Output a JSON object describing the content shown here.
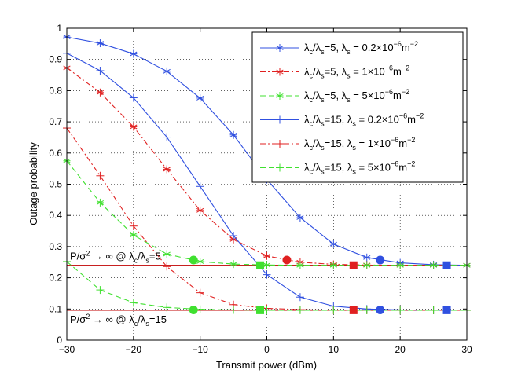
{
  "chart_data": {
    "type": "line",
    "xlabel": "Transmit power (dBm)",
    "ylabel": "Outage probability",
    "xlim": [
      -30,
      30
    ],
    "ylim": [
      0,
      1
    ],
    "xticks": [
      -30,
      -20,
      -10,
      0,
      10,
      20,
      30
    ],
    "xtick_labels": [
      "−30",
      "−20",
      "−10",
      "0",
      "10",
      "20",
      "30"
    ],
    "yticks": [
      0,
      0.1,
      0.2,
      0.3,
      0.4,
      0.5,
      0.6,
      0.7,
      0.8,
      0.9,
      1
    ],
    "ytick_labels": [
      "0",
      "0.1",
      "0.2",
      "0.3",
      "0.4",
      "0.5",
      "0.6",
      "0.7",
      "0.8",
      "0.9",
      "1"
    ],
    "grid": true,
    "legend_position": "top-right",
    "series": [
      {
        "name": "λc/λs=5, λs = 0.2×10⁻⁶m⁻²",
        "legend": {
          "a": "c",
          "b": "s",
          "r": "5",
          "val": "0.2×10",
          "exp1": "−6",
          "unit": "m",
          "exp2": "−2"
        },
        "color": "#3050e0",
        "dash": "solid",
        "marker": "asterisk",
        "x": [
          -30,
          -25,
          -20,
          -15,
          -10,
          -5,
          0,
          5,
          10,
          15,
          20,
          25,
          30
        ],
        "y": [
          0.972,
          0.952,
          0.918,
          0.862,
          0.776,
          0.658,
          0.515,
          0.393,
          0.308,
          0.265,
          0.248,
          0.242,
          0.24
        ]
      },
      {
        "name": "λc/λs=5, λs = 1×10⁻⁶m⁻²",
        "legend": {
          "a": "c",
          "b": "s",
          "r": "5",
          "val": "1×10",
          "exp1": "−6",
          "unit": "m",
          "exp2": "−2"
        },
        "color": "#e02020",
        "dash": "dashdot",
        "marker": "asterisk",
        "x": [
          -30,
          -25,
          -20,
          -15,
          -10,
          -5,
          0,
          5,
          10,
          15,
          20,
          25,
          30
        ],
        "y": [
          0.873,
          0.794,
          0.684,
          0.548,
          0.416,
          0.323,
          0.27,
          0.25,
          0.243,
          0.241,
          0.24,
          0.24,
          0.24
        ]
      },
      {
        "name": "λc/λs=5, λs = 5×10⁻⁶m⁻²",
        "legend": {
          "a": "c",
          "b": "s",
          "r": "5",
          "val": "5×10",
          "exp1": "−6",
          "unit": "m",
          "exp2": "−2"
        },
        "color": "#40e030",
        "dash": "dashed",
        "marker": "asterisk",
        "x": [
          -30,
          -25,
          -20,
          -15,
          -10,
          -5,
          0,
          5,
          10,
          15,
          20,
          25,
          30
        ],
        "y": [
          0.575,
          0.441,
          0.337,
          0.276,
          0.252,
          0.244,
          0.241,
          0.24,
          0.24,
          0.24,
          0.24,
          0.24,
          0.24
        ]
      },
      {
        "name": "λc/λs=15, λs = 0.2×10⁻⁶m⁻²",
        "legend": {
          "a": "c",
          "b": "s",
          "r": "15",
          "val": "0.2×10",
          "exp1": "−6",
          "unit": "m",
          "exp2": "−2"
        },
        "color": "#3050e0",
        "dash": "solid",
        "marker": "plus",
        "x": [
          -30,
          -25,
          -20,
          -15,
          -10,
          -5,
          0,
          5,
          10,
          15,
          20,
          25,
          30
        ],
        "y": [
          0.92,
          0.864,
          0.777,
          0.651,
          0.493,
          0.335,
          0.21,
          0.138,
          0.109,
          0.1,
          0.097,
          0.096,
          0.096
        ]
      },
      {
        "name": "λc/λs=15, λs = 1×10⁻⁶m⁻²",
        "legend": {
          "a": "c",
          "b": "s",
          "r": "15",
          "val": "1×10",
          "exp1": "−6",
          "unit": "m",
          "exp2": "−2"
        },
        "color": "#e02020",
        "dash": "dashdot",
        "marker": "plus",
        "x": [
          -30,
          -25,
          -20,
          -15,
          -10,
          -5,
          0,
          5,
          10,
          15,
          20,
          25,
          30
        ],
        "y": [
          0.68,
          0.527,
          0.366,
          0.236,
          0.152,
          0.114,
          0.102,
          0.098,
          0.096,
          0.096,
          0.096,
          0.096,
          0.096
        ]
      },
      {
        "name": "λc/λs=15, λs = 5×10⁻⁶m⁻²",
        "legend": {
          "a": "c",
          "b": "s",
          "r": "15",
          "val": "5×10",
          "exp1": "−6",
          "unit": "m",
          "exp2": "−2"
        },
        "color": "#40e030",
        "dash": "dashed",
        "marker": "plus",
        "x": [
          -30,
          -25,
          -20,
          -15,
          -10,
          -5,
          0,
          5,
          10,
          15,
          20,
          25,
          30
        ],
        "y": [
          0.252,
          0.161,
          0.12,
          0.105,
          0.099,
          0.097,
          0.096,
          0.096,
          0.096,
          0.096,
          0.096,
          0.096,
          0.096
        ]
      }
    ],
    "reference_lines": [
      {
        "y": 0.24,
        "color": "#c00000",
        "label": {
          "pre": "P/σ",
          "sup": "2",
          "post": " → ∞ @ λ",
          "a": "c",
          "mid": "/λ",
          "b": "s",
          "end": "=5"
        }
      },
      {
        "y": 0.096,
        "color": "#c00000",
        "label": {
          "pre": "P/σ",
          "sup": "2",
          "post": " → ∞ @ λ",
          "a": "c",
          "mid": "/λ",
          "b": "s",
          "end": "=15"
        }
      }
    ],
    "convergence_markers": [
      {
        "x": -11,
        "y": 0.257,
        "shape": "circle",
        "color": "#40e030"
      },
      {
        "x": -11,
        "y": 0.097,
        "shape": "circle",
        "color": "#40e030"
      },
      {
        "x": -1,
        "y": 0.24,
        "shape": "square",
        "color": "#40e030"
      },
      {
        "x": -1,
        "y": 0.096,
        "shape": "square",
        "color": "#40e030"
      },
      {
        "x": 3,
        "y": 0.257,
        "shape": "circle",
        "color": "#e02020"
      },
      {
        "x": 13,
        "y": 0.24,
        "shape": "square",
        "color": "#e02020"
      },
      {
        "x": 13,
        "y": 0.096,
        "shape": "square",
        "color": "#e02020"
      },
      {
        "x": 17,
        "y": 0.257,
        "shape": "circle",
        "color": "#3050e0"
      },
      {
        "x": 17,
        "y": 0.097,
        "shape": "circle",
        "color": "#3050e0"
      },
      {
        "x": 27,
        "y": 0.24,
        "shape": "square",
        "color": "#3050e0"
      },
      {
        "x": 27,
        "y": 0.096,
        "shape": "square",
        "color": "#3050e0"
      }
    ]
  }
}
